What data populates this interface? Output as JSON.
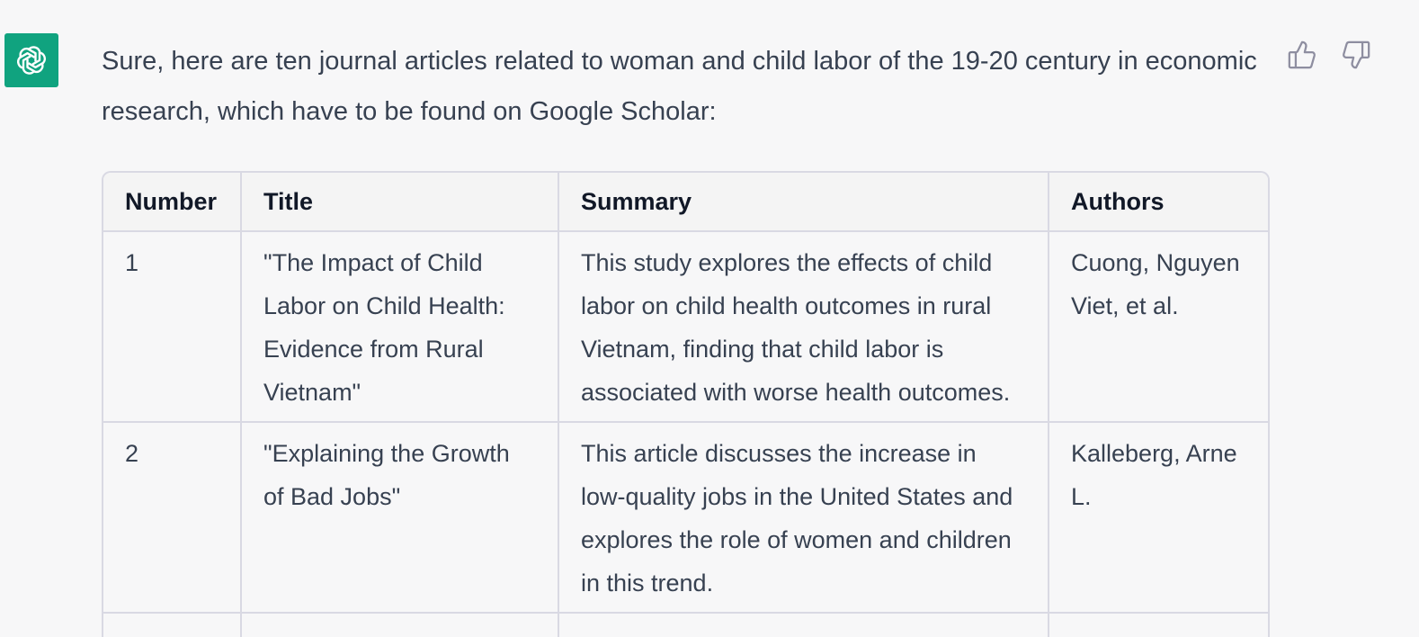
{
  "assistant": {
    "avatar_icon": "openai-logo-icon",
    "avatar_color": "#10a37f"
  },
  "feedback": {
    "thumbs_up_icon": "thumbs-up-icon",
    "thumbs_down_icon": "thumbs-down-icon"
  },
  "message": {
    "intro": "Sure, here are ten journal articles related to woman and child labor of the 19-20 century in economic research, which have to be found on Google Scholar:"
  },
  "table": {
    "headers": [
      "Number",
      "Title",
      "Summary",
      "Authors"
    ],
    "rows": [
      {
        "number": "1",
        "title": "\"The Impact of Child Labor on Child Health: Evidence from Rural Vietnam\"",
        "summary": "This study explores the effects of child labor on child health outcomes in rural Vietnam, finding that child labor is associated with worse health outcomes.",
        "authors": "Cuong, Nguyen Viet, et al."
      },
      {
        "number": "2",
        "title": "\"Explaining the Growth of Bad Jobs\"",
        "summary": "This article discusses the increase in low-quality jobs in the United States and explores the role of women and children in this trend.",
        "authors": "Kalleberg, Arne L."
      }
    ]
  }
}
